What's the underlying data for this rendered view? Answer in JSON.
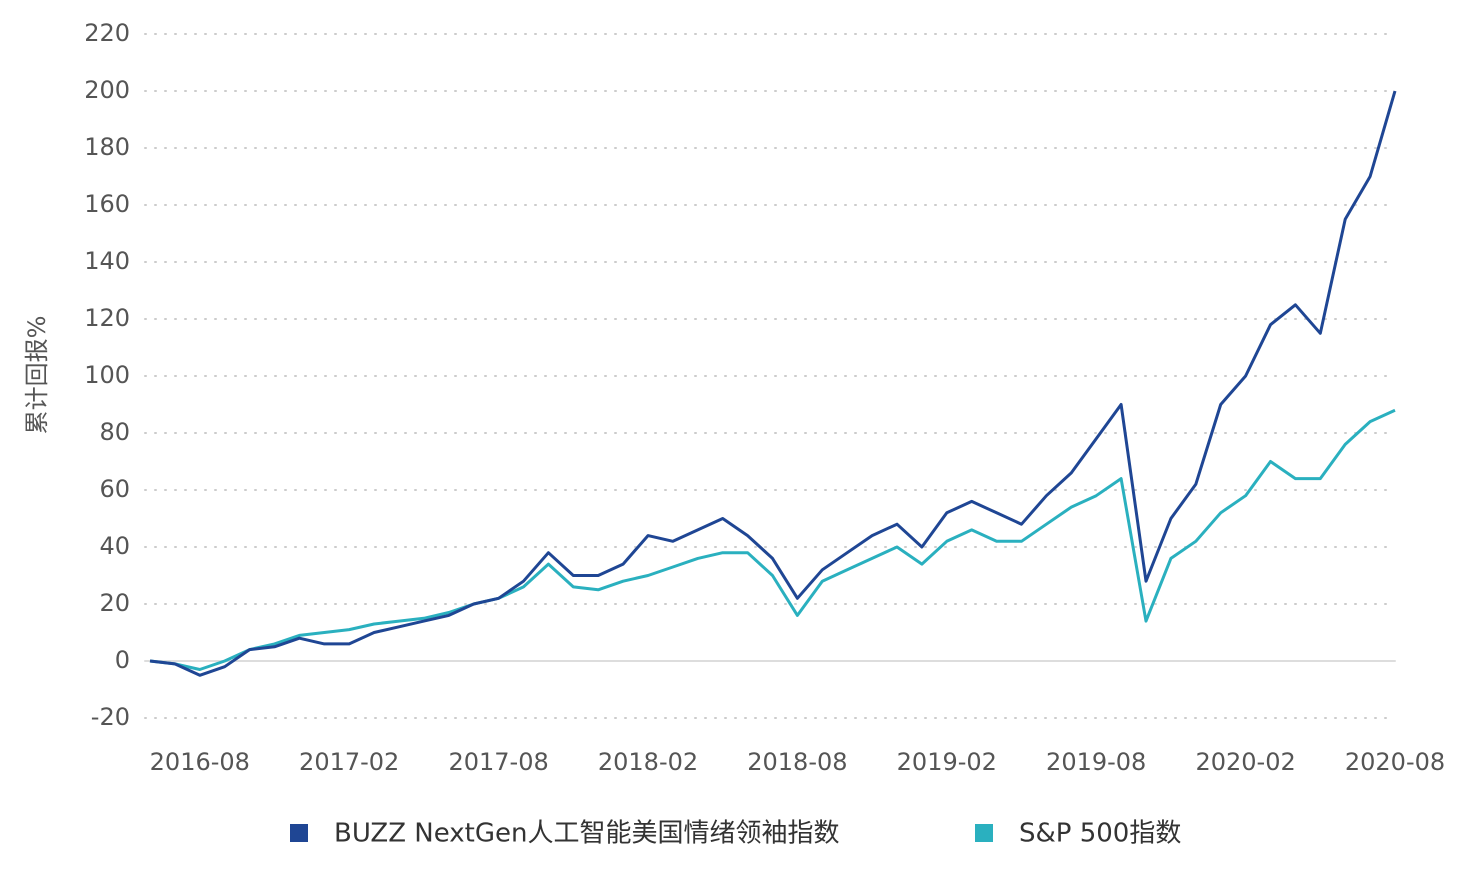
{
  "chart_data": {
    "type": "line",
    "y_label": "累计回报%",
    "x": [
      "2016-06",
      "2016-07",
      "2016-08",
      "2016-09",
      "2016-10",
      "2016-11",
      "2016-12",
      "2017-01",
      "2017-02",
      "2017-03",
      "2017-04",
      "2017-05",
      "2017-06",
      "2017-07",
      "2017-08",
      "2017-09",
      "2017-10",
      "2017-11",
      "2017-12",
      "2018-01",
      "2018-02",
      "2018-03",
      "2018-04",
      "2018-05",
      "2018-06",
      "2018-07",
      "2018-08",
      "2018-09",
      "2018-10",
      "2018-11",
      "2018-12",
      "2019-01",
      "2019-02",
      "2019-03",
      "2019-04",
      "2019-05",
      "2019-06",
      "2019-07",
      "2019-08",
      "2019-09",
      "2019-10",
      "2019-11",
      "2019-12",
      "2020-01",
      "2020-02",
      "2020-03",
      "2020-04",
      "2020-05",
      "2020-06",
      "2020-07",
      "2020-08"
    ],
    "series": [
      {
        "name": "BUZZ NextGen人工智能美国情绪领袖指数",
        "color": "#1f4694",
        "values": [
          0,
          -1,
          -5,
          -2,
          4,
          5,
          8,
          6,
          6,
          10,
          12,
          14,
          16,
          20,
          22,
          28,
          38,
          30,
          30,
          34,
          44,
          42,
          46,
          50,
          44,
          36,
          22,
          32,
          38,
          44,
          48,
          40,
          52,
          56,
          52,
          48,
          58,
          66,
          78,
          90,
          28,
          50,
          62,
          90,
          100,
          118,
          125,
          115,
          155,
          170,
          200
        ]
      },
      {
        "name": "S&P 500指数",
        "color": "#2ab0bf",
        "values": [
          0,
          -1,
          -3,
          0,
          4,
          6,
          9,
          10,
          11,
          13,
          14,
          15,
          17,
          20,
          22,
          26,
          34,
          26,
          25,
          28,
          30,
          33,
          36,
          38,
          38,
          30,
          16,
          28,
          32,
          36,
          40,
          34,
          42,
          46,
          42,
          42,
          48,
          54,
          58,
          64,
          14,
          36,
          42,
          52,
          58,
          70,
          64,
          64,
          76,
          84,
          88
        ]
      }
    ],
    "xlim": [
      "2016-06",
      "2020-08"
    ],
    "xticks": [
      "2016-08",
      "2017-02",
      "2017-08",
      "2018-02",
      "2018-08",
      "2019-02",
      "2019-08",
      "2020-02",
      "2020-08"
    ],
    "ylim": [
      -20,
      220
    ],
    "yticks": [
      -20,
      0,
      20,
      40,
      60,
      80,
      100,
      120,
      140,
      160,
      180,
      200,
      220
    ],
    "grid": true
  }
}
